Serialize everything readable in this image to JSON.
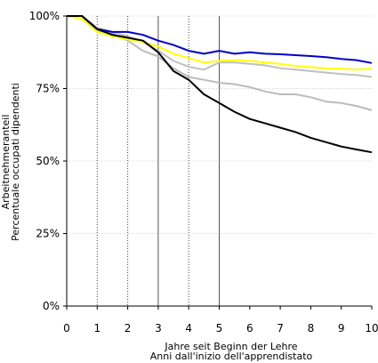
{
  "chart_data": {
    "type": "line",
    "xlabel": [
      "Jahre seit Beginn der Lehre",
      "Anni dall'inizio dell'apprendistato"
    ],
    "ylabel": [
      "Arbeitnehmeranteil",
      "Percentuale occupati dipendenti"
    ],
    "xlim": [
      0,
      10
    ],
    "ylim": [
      0,
      1
    ],
    "x_ticks": [
      "0",
      "1",
      "2",
      "3",
      "4",
      "5",
      "6",
      "7",
      "8",
      "9",
      "10"
    ],
    "y_ticks": [
      "0%",
      "25%",
      "50%",
      "75%",
      "100%"
    ],
    "y_tick_values": [
      0,
      0.25,
      0.5,
      0.75,
      1.0
    ],
    "grid": "horizontal dotted",
    "vertical_markers": [
      {
        "x": 1,
        "style": "dotted"
      },
      {
        "x": 2,
        "style": "dotted"
      },
      {
        "x": 3,
        "style": "solid"
      },
      {
        "x": 4,
        "style": "dotted"
      },
      {
        "x": 5,
        "style": "solid"
      }
    ],
    "series": [
      {
        "color": "#c0c0c0",
        "x": [
          0,
          0.5,
          1,
          1.5,
          2,
          2.5,
          3,
          3.5,
          4,
          4.5,
          5,
          5.5,
          6,
          6.5,
          7,
          7.5,
          8,
          8.5,
          9,
          9.5,
          10
        ],
        "values": [
          1.0,
          1.0,
          0.96,
          0.945,
          0.93,
          0.91,
          0.88,
          0.845,
          0.825,
          0.815,
          0.84,
          0.84,
          0.835,
          0.83,
          0.82,
          0.815,
          0.81,
          0.805,
          0.8,
          0.797,
          0.79
        ]
      },
      {
        "color": "#bbbbbb",
        "x": [
          0,
          0.5,
          1,
          1.5,
          2,
          2.5,
          3,
          3.5,
          4,
          4.5,
          5,
          5.5,
          6,
          6.5,
          7,
          7.5,
          8,
          8.5,
          9,
          9.5,
          10
        ],
        "values": [
          1.0,
          1.0,
          0.95,
          0.94,
          0.915,
          0.88,
          0.86,
          0.82,
          0.79,
          0.78,
          0.77,
          0.765,
          0.755,
          0.74,
          0.73,
          0.73,
          0.72,
          0.705,
          0.7,
          0.69,
          0.675
        ]
      },
      {
        "color": "#0000cc",
        "x": [
          0,
          0.5,
          1,
          1.5,
          2,
          2.5,
          3,
          3.5,
          4,
          4.5,
          5,
          5.5,
          6,
          6.5,
          7,
          7.5,
          8,
          8.5,
          9,
          9.5,
          10
        ],
        "values": [
          1.0,
          1.0,
          0.955,
          0.945,
          0.945,
          0.935,
          0.915,
          0.9,
          0.88,
          0.87,
          0.88,
          0.87,
          0.875,
          0.87,
          0.868,
          0.865,
          0.862,
          0.858,
          0.852,
          0.848,
          0.838
        ]
      },
      {
        "color": "#ffff00",
        "x": [
          0,
          0.5,
          1,
          1.5,
          2,
          2.5,
          3,
          3.5,
          4,
          4.5,
          5,
          5.5,
          6,
          6.5,
          7,
          7.5,
          8,
          8.5,
          9,
          9.5,
          10
        ],
        "values": [
          1.0,
          0.99,
          0.945,
          0.93,
          0.92,
          0.91,
          0.895,
          0.87,
          0.855,
          0.84,
          0.845,
          0.848,
          0.845,
          0.84,
          0.835,
          0.828,
          0.824,
          0.82,
          0.818,
          0.815,
          0.818
        ]
      },
      {
        "color": "#000000",
        "x": [
          0,
          0.5,
          1,
          1.5,
          2,
          2.5,
          3,
          3.5,
          4,
          4.5,
          5,
          5.5,
          6,
          6.5,
          7,
          7.5,
          8,
          8.5,
          9,
          9.5,
          10
        ],
        "values": [
          1.0,
          1.0,
          0.955,
          0.935,
          0.925,
          0.915,
          0.875,
          0.81,
          0.78,
          0.73,
          0.7,
          0.67,
          0.645,
          0.63,
          0.615,
          0.6,
          0.58,
          0.565,
          0.55,
          0.54,
          0.53
        ]
      }
    ]
  }
}
